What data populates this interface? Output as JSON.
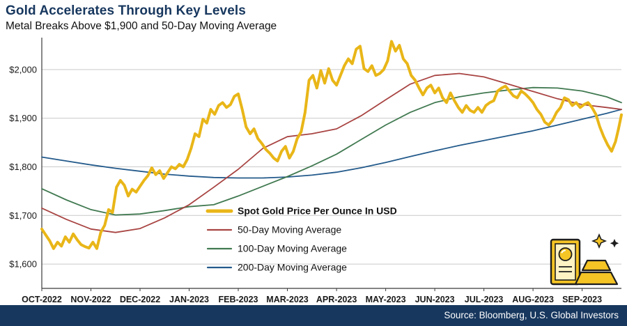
{
  "colors": {
    "title_navy": "#17375E",
    "footer_bg": "#17375E",
    "grid": "#C9C9C9",
    "axis": "#3a3a3a",
    "spot_gold": "#E9B618",
    "ma50_red": "#A84442",
    "ma100_green": "#407950",
    "ma200_blue": "#235A8B"
  },
  "chart_data": {
    "type": "line",
    "title": "Gold Accelerates Through Key Levels",
    "subtitle": "Metal Breaks Above $1,900 and 50-Day Moving Average",
    "source": "Source: Bloomberg, U.S. Global Investors",
    "xlabel": "",
    "ylabel": "",
    "x_unit_note": "x = months since 01-OCT-2022",
    "xlim": [
      0,
      11.8
    ],
    "ylim": [
      1550,
      2060
    ],
    "grid": "horizontal-only",
    "legend_position": "inside-bottom-center",
    "y_ticks": [
      1600,
      1700,
      1800,
      1900,
      2000
    ],
    "y_tick_labels": [
      "$1,600",
      "$1,700",
      "$1,800",
      "$1,900",
      "$2,000"
    ],
    "x_tick_positions": [
      0,
      1,
      2,
      3,
      4,
      5,
      6,
      7,
      8,
      9,
      10,
      11
    ],
    "x_tick_labels": [
      "OCT-2022",
      "NOV-2022",
      "DEC-2022",
      "JAN-2023",
      "FEB-2023",
      "MAR-2023",
      "APR-2023",
      "MAY-2023",
      "JUN-2023",
      "JUL-2023",
      "AUG-2023",
      "SEP-2023"
    ],
    "series": [
      {
        "id": "spot",
        "name": "Spot Gold Price Per Ounce In USD",
        "color": "#E9B618",
        "stroke_width": 4,
        "x": [
          0,
          0.08,
          0.16,
          0.24,
          0.32,
          0.4,
          0.48,
          0.56,
          0.64,
          0.72,
          0.8,
          0.88,
          0.96,
          1.04,
          1.12,
          1.2,
          1.28,
          1.36,
          1.44,
          1.52,
          1.6,
          1.68,
          1.76,
          1.84,
          1.92,
          2.0,
          2.08,
          2.16,
          2.24,
          2.32,
          2.4,
          2.48,
          2.56,
          2.64,
          2.72,
          2.8,
          2.88,
          2.96,
          3.04,
          3.12,
          3.2,
          3.28,
          3.36,
          3.44,
          3.52,
          3.6,
          3.68,
          3.76,
          3.84,
          3.92,
          4.0,
          4.08,
          4.16,
          4.24,
          4.32,
          4.4,
          4.48,
          4.56,
          4.64,
          4.72,
          4.8,
          4.88,
          4.96,
          5.04,
          5.12,
          5.2,
          5.28,
          5.36,
          5.44,
          5.52,
          5.6,
          5.68,
          5.76,
          5.84,
          5.92,
          6.0,
          6.08,
          6.16,
          6.24,
          6.32,
          6.4,
          6.48,
          6.56,
          6.64,
          6.72,
          6.8,
          6.88,
          6.96,
          7.04,
          7.12,
          7.2,
          7.28,
          7.36,
          7.44,
          7.52,
          7.6,
          7.68,
          7.76,
          7.84,
          7.92,
          8.0,
          8.08,
          8.16,
          8.24,
          8.32,
          8.4,
          8.48,
          8.56,
          8.64,
          8.72,
          8.8,
          8.88,
          8.96,
          9.04,
          9.12,
          9.2,
          9.28,
          9.36,
          9.44,
          9.52,
          9.6,
          9.68,
          9.76,
          9.84,
          9.92,
          10.0,
          10.08,
          10.16,
          10.24,
          10.32,
          10.4,
          10.48,
          10.56,
          10.64,
          10.72,
          10.8,
          10.88,
          10.96,
          11.04,
          11.12,
          11.2,
          11.28,
          11.36,
          11.44,
          11.52,
          11.6,
          11.68,
          11.74,
          11.8
        ],
        "values": [
          1672,
          1660,
          1648,
          1632,
          1645,
          1637,
          1656,
          1645,
          1662,
          1650,
          1640,
          1636,
          1633,
          1645,
          1632,
          1665,
          1680,
          1712,
          1706,
          1758,
          1772,
          1762,
          1740,
          1754,
          1748,
          1760,
          1772,
          1782,
          1798,
          1784,
          1792,
          1776,
          1788,
          1800,
          1796,
          1805,
          1800,
          1815,
          1838,
          1868,
          1862,
          1898,
          1890,
          1918,
          1908,
          1926,
          1932,
          1922,
          1928,
          1945,
          1950,
          1918,
          1882,
          1868,
          1878,
          1858,
          1848,
          1836,
          1828,
          1818,
          1812,
          1832,
          1842,
          1818,
          1832,
          1858,
          1872,
          1912,
          1978,
          1988,
          1962,
          1998,
          1972,
          2002,
          1978,
          1968,
          1988,
          2008,
          2022,
          2012,
          2042,
          2048,
          2002,
          1996,
          2008,
          1988,
          1992,
          2000,
          2018,
          2058,
          2038,
          2050,
          2022,
          2012,
          1988,
          1978,
          1962,
          1948,
          1962,
          1968,
          1952,
          1962,
          1942,
          1932,
          1952,
          1936,
          1922,
          1912,
          1926,
          1916,
          1912,
          1922,
          1912,
          1926,
          1932,
          1936,
          1956,
          1962,
          1966,
          1956,
          1946,
          1942,
          1956,
          1950,
          1942,
          1932,
          1918,
          1908,
          1892,
          1886,
          1896,
          1912,
          1922,
          1942,
          1938,
          1926,
          1932,
          1922,
          1928,
          1932,
          1922,
          1908,
          1882,
          1862,
          1845,
          1832,
          1852,
          1878,
          1907
        ]
      },
      {
        "id": "ma50",
        "name": "50-Day Moving Average",
        "color": "#A84442",
        "stroke_width": 1.8,
        "x": [
          0,
          0.5,
          1,
          1.5,
          2,
          2.5,
          3,
          3.5,
          4,
          4.5,
          5,
          5.5,
          6,
          6.5,
          7,
          7.5,
          8,
          8.5,
          9,
          9.5,
          10,
          10.5,
          11,
          11.5,
          11.8
        ],
        "values": [
          1715,
          1692,
          1672,
          1665,
          1673,
          1695,
          1722,
          1758,
          1795,
          1838,
          1862,
          1868,
          1878,
          1905,
          1938,
          1970,
          1988,
          1992,
          1985,
          1970,
          1955,
          1940,
          1928,
          1922,
          1918
        ]
      },
      {
        "id": "ma100",
        "name": "100-Day Moving Average",
        "color": "#407950",
        "stroke_width": 1.8,
        "x": [
          0,
          0.5,
          1,
          1.5,
          2,
          2.5,
          3,
          3.5,
          4,
          4.5,
          5,
          5.5,
          6,
          6.5,
          7,
          7.5,
          8,
          8.5,
          9,
          9.5,
          10,
          10.5,
          11,
          11.5,
          11.8
        ],
        "values": [
          1755,
          1732,
          1712,
          1701,
          1703,
          1710,
          1718,
          1722,
          1740,
          1760,
          1780,
          1802,
          1826,
          1856,
          1886,
          1912,
          1932,
          1944,
          1952,
          1958,
          1963,
          1962,
          1956,
          1944,
          1932
        ]
      },
      {
        "id": "ma200",
        "name": "200-Day Moving Average",
        "color": "#235A8B",
        "stroke_width": 1.8,
        "x": [
          0,
          0.5,
          1,
          1.5,
          2,
          2.5,
          3,
          3.5,
          4,
          4.5,
          5,
          5.5,
          6,
          6.5,
          7,
          7.5,
          8,
          8.5,
          9,
          9.5,
          10,
          10.5,
          11,
          11.5,
          11.8
        ],
        "values": [
          1820,
          1812,
          1804,
          1797,
          1791,
          1785,
          1781,
          1778,
          1777,
          1777,
          1779,
          1783,
          1789,
          1798,
          1809,
          1821,
          1833,
          1844,
          1854,
          1864,
          1874,
          1886,
          1898,
          1910,
          1918
        ]
      }
    ]
  }
}
